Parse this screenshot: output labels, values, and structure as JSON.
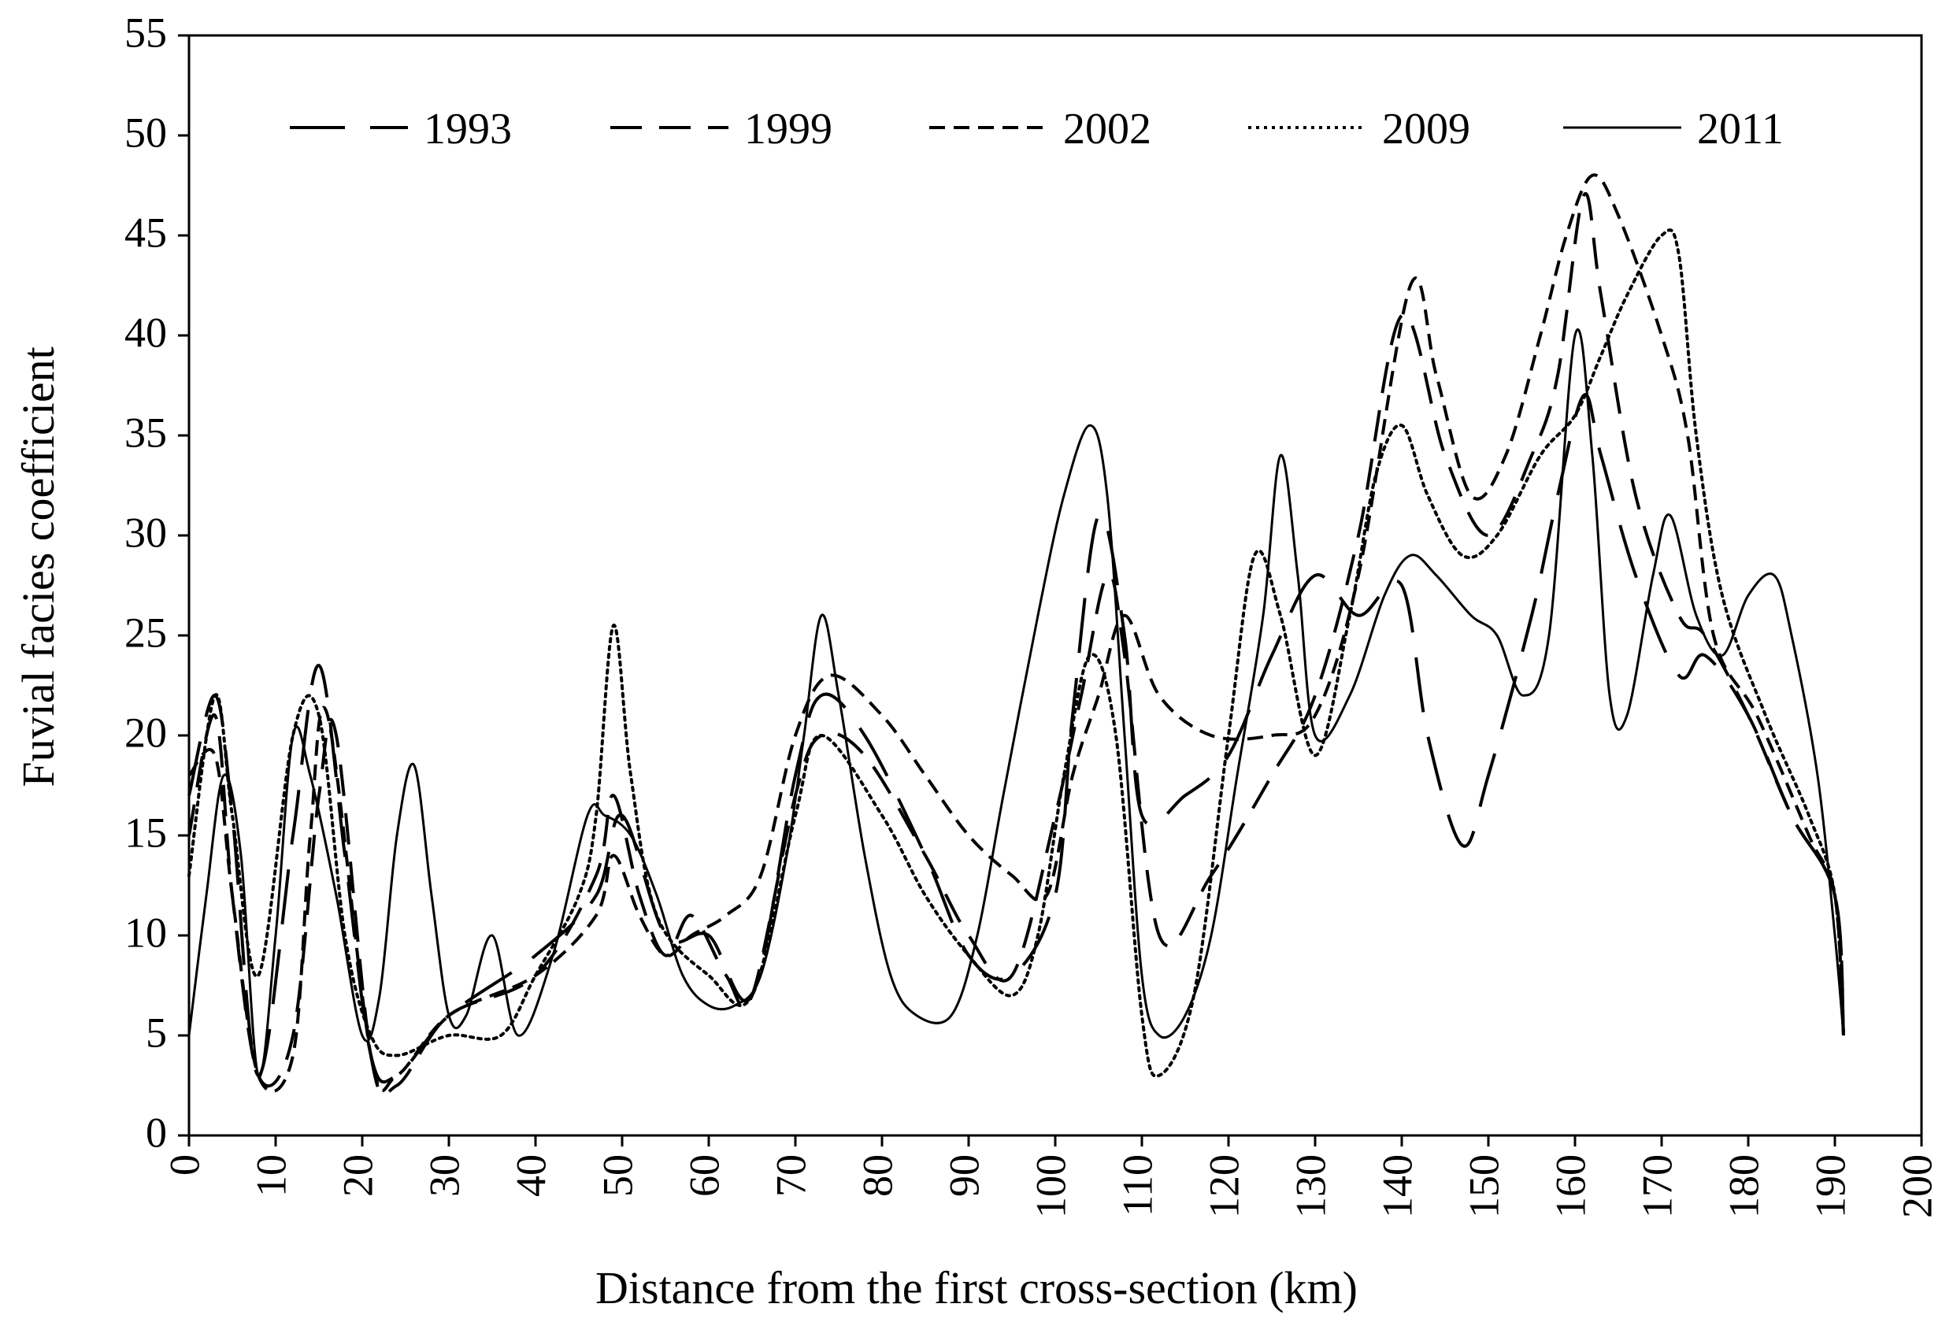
{
  "chart_data": {
    "type": "line",
    "title": "",
    "xlabel": "Distance from the first cross-section (km)",
    "ylabel": "Fuvial facies coefficient",
    "xlim": [
      0,
      200
    ],
    "ylim": [
      0,
      55
    ],
    "xticks": [
      "0",
      "10",
      "20",
      "30",
      "40",
      "50",
      "60",
      "70",
      "80",
      "90",
      "100",
      "110",
      "120",
      "130",
      "140",
      "150",
      "160",
      "170",
      "180",
      "190",
      "200"
    ],
    "yticks": [
      "0",
      "5",
      "10",
      "15",
      "20",
      "25",
      "30",
      "35",
      "40",
      "45",
      "50",
      "55"
    ],
    "grid": false,
    "legend_position": "top",
    "series": [
      {
        "name": "1993",
        "dash": "70,32",
        "x": [
          0,
          3,
          5,
          8,
          12,
          15,
          18,
          21,
          24,
          30,
          40,
          47,
          50,
          55,
          60,
          65,
          70,
          73,
          78,
          85,
          90,
          95,
          100,
          102,
          105,
          108,
          110,
          115,
          120,
          125,
          130,
          135,
          140,
          143,
          147,
          150,
          155,
          158,
          161,
          163,
          167,
          172,
          175,
          180,
          185,
          190,
          191
        ],
        "y": [
          17,
          22,
          16,
          3,
          15,
          23.5,
          14,
          4,
          3,
          6,
          9,
          12,
          16,
          10,
          10,
          7,
          18,
          22,
          20,
          14,
          9,
          8,
          12,
          21,
          31,
          25,
          16,
          17,
          19,
          24,
          28,
          26,
          27.5,
          20,
          14.5,
          18,
          26,
          32,
          37,
          34,
          28,
          23,
          24,
          21,
          16,
          12,
          5
        ]
      },
      {
        "name": "1999",
        "dash": "40,22",
        "x": [
          0,
          3,
          5,
          8,
          12,
          15,
          17,
          21,
          24,
          30,
          40,
          47,
          49,
          52,
          55,
          58,
          62,
          65,
          70,
          73,
          78,
          85,
          90,
          95,
          100,
          103,
          106,
          108,
          112,
          118,
          125,
          130,
          135,
          140,
          145,
          150,
          155,
          158,
          161,
          163,
          167,
          172,
          175,
          180,
          185,
          190,
          191
        ],
        "y": [
          15,
          21,
          12,
          3,
          5,
          17,
          20,
          4,
          2.5,
          6,
          8,
          13,
          17,
          12,
          9,
          11,
          8,
          7,
          17,
          20,
          19,
          14,
          10,
          8,
          16,
          22,
          28,
          24,
          10,
          13,
          18,
          22,
          30,
          41,
          34,
          30,
          34,
          38,
          47,
          42,
          32,
          26,
          25,
          21,
          16,
          12,
          5
        ]
      },
      {
        "name": "2002",
        "dash": "20,11",
        "x": [
          0,
          3,
          5,
          8,
          12,
          14,
          16,
          21,
          24,
          30,
          40,
          47,
          49,
          52,
          55,
          58,
          62,
          66,
          70,
          74,
          80,
          85,
          90,
          95,
          99,
          102,
          105,
          108,
          112,
          118,
          125,
          130,
          135,
          141,
          144,
          148,
          152,
          156,
          159,
          162,
          165,
          170,
          173,
          176,
          181,
          187,
          190,
          191
        ],
        "y": [
          18,
          19,
          12,
          3,
          4,
          15,
          21,
          4,
          3,
          6,
          8,
          11,
          14,
          11,
          9,
          10,
          11,
          13,
          20,
          23,
          21,
          18,
          15,
          13,
          12,
          18,
          22,
          26,
          22,
          20,
          20,
          21,
          28,
          42.5,
          38,
          32,
          34,
          40,
          45,
          48,
          46,
          40,
          35,
          25,
          21,
          15,
          12,
          5
        ]
      },
      {
        "name": "2009",
        "dash": "4,6",
        "x": [
          0,
          3,
          5,
          8,
          12,
          15,
          18,
          21,
          24,
          30,
          36,
          40,
          45,
          47,
          49,
          51,
          54,
          60,
          65,
          70,
          73,
          80,
          85,
          90,
          95,
          98,
          101,
          104,
          107,
          110,
          112,
          116,
          120,
          123,
          126,
          130,
          134,
          137,
          140,
          143,
          147,
          151,
          156,
          160,
          163,
          166,
          170,
          172,
          174,
          177,
          182,
          187,
          190,
          191
        ],
        "y": [
          13,
          22,
          16,
          8,
          20,
          21,
          10,
          5,
          4,
          5,
          5,
          8,
          12,
          16,
          25.5,
          18,
          11,
          8,
          7,
          16,
          20,
          16,
          12,
          9,
          7,
          10,
          18,
          24,
          20,
          6,
          3,
          7,
          20,
          29,
          26,
          19,
          26,
          33,
          35.5,
          32,
          29,
          30,
          34,
          36,
          39,
          42,
          45,
          44,
          35,
          27,
          21,
          16,
          12,
          5
        ]
      },
      {
        "name": "2011",
        "dash": "",
        "x": [
          0,
          2,
          4,
          6,
          8,
          10,
          12,
          14,
          17,
          20,
          22,
          24,
          26,
          28,
          30,
          32,
          35,
          38,
          42,
          46,
          48,
          51,
          54,
          57,
          60,
          63,
          66,
          69,
          71,
          73,
          75,
          78,
          81,
          84,
          88,
          91,
          94,
          98,
          101,
          104,
          106,
          108,
          110,
          112,
          115,
          118,
          121,
          124,
          126,
          128,
          130,
          134,
          138,
          141,
          144,
          148,
          151,
          154,
          157,
          160,
          162,
          164,
          166,
          169,
          171,
          174,
          177,
          180,
          183,
          185,
          188,
          190,
          191
        ],
        "y": [
          5,
          12,
          18,
          14,
          3,
          10,
          20,
          18,
          12,
          5,
          7,
          15,
          18.5,
          12,
          6,
          6,
          10,
          5,
          9,
          16,
          16,
          15,
          12,
          8,
          6.5,
          6.5,
          8,
          14,
          20,
          26,
          22,
          14,
          8,
          6,
          6,
          10,
          17,
          26,
          32,
          35.5,
          32,
          20,
          8,
          5,
          6,
          10,
          18,
          26,
          34,
          28,
          20,
          22,
          27,
          29,
          28,
          26,
          25,
          22,
          25,
          40,
          34,
          22,
          21,
          28,
          31,
          26,
          24,
          27,
          28,
          25,
          18,
          10,
          5
        ]
      }
    ]
  }
}
